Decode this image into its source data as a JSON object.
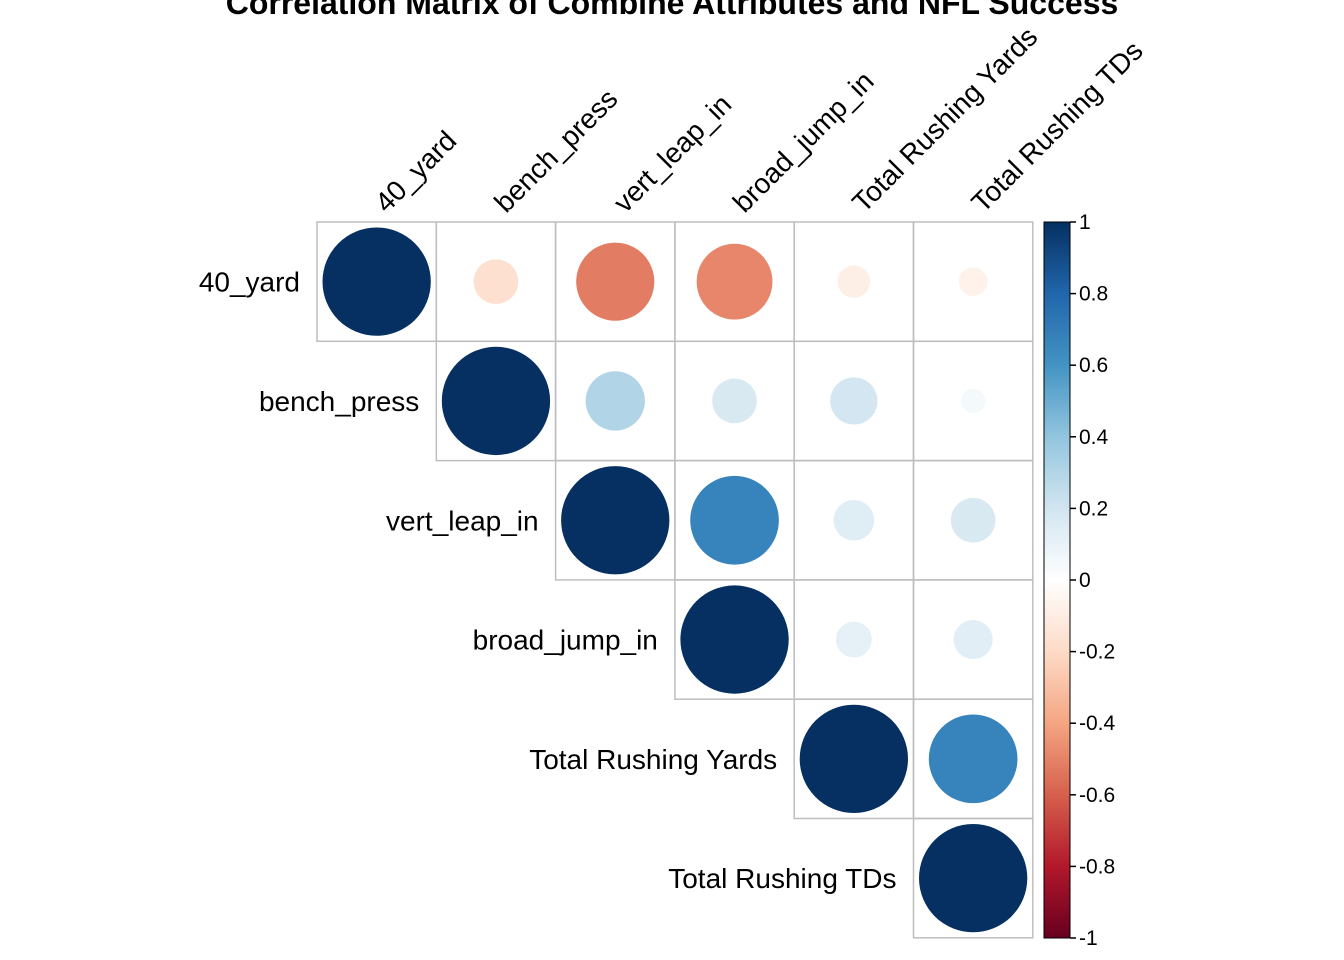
{
  "chart_data": {
    "type": "heatmap",
    "style": "corrplot-upper-circle",
    "title": "Correlation Matrix of Combine Attributes and NFL Success",
    "variables": [
      "40_yard",
      "bench_press",
      "vert_leap_in",
      "broad_jump_in",
      "Total Rushing Yards",
      "Total Rushing TDs"
    ],
    "matrix": [
      [
        1.0,
        -0.17,
        -0.52,
        -0.49,
        -0.09,
        -0.07
      ],
      [
        -0.17,
        1.0,
        0.3,
        0.17,
        0.19,
        0.05
      ],
      [
        -0.52,
        0.3,
        1.0,
        0.67,
        0.14,
        0.17
      ],
      [
        -0.49,
        0.17,
        0.67,
        1.0,
        0.11,
        0.13
      ],
      [
        -0.09,
        0.19,
        0.14,
        0.11,
        1.0,
        0.67
      ],
      [
        -0.07,
        0.05,
        0.17,
        0.13,
        0.67,
        1.0
      ]
    ],
    "triangle": "upper",
    "colorbar": {
      "range": [
        -1,
        1
      ],
      "ticks": [
        "1",
        "0.8",
        "0.6",
        "0.4",
        "0.2",
        "0",
        "-0.2",
        "-0.4",
        "-0.6",
        "-0.8",
        "-1"
      ],
      "colors": [
        "#67001F",
        "#B2182B",
        "#D6604D",
        "#F4A582",
        "#FDDBC7",
        "#FFFFFF",
        "#D1E5F0",
        "#92C5DE",
        "#4393C3",
        "#2166AC",
        "#053061"
      ]
    },
    "grid_color": "#BEBEBE"
  }
}
